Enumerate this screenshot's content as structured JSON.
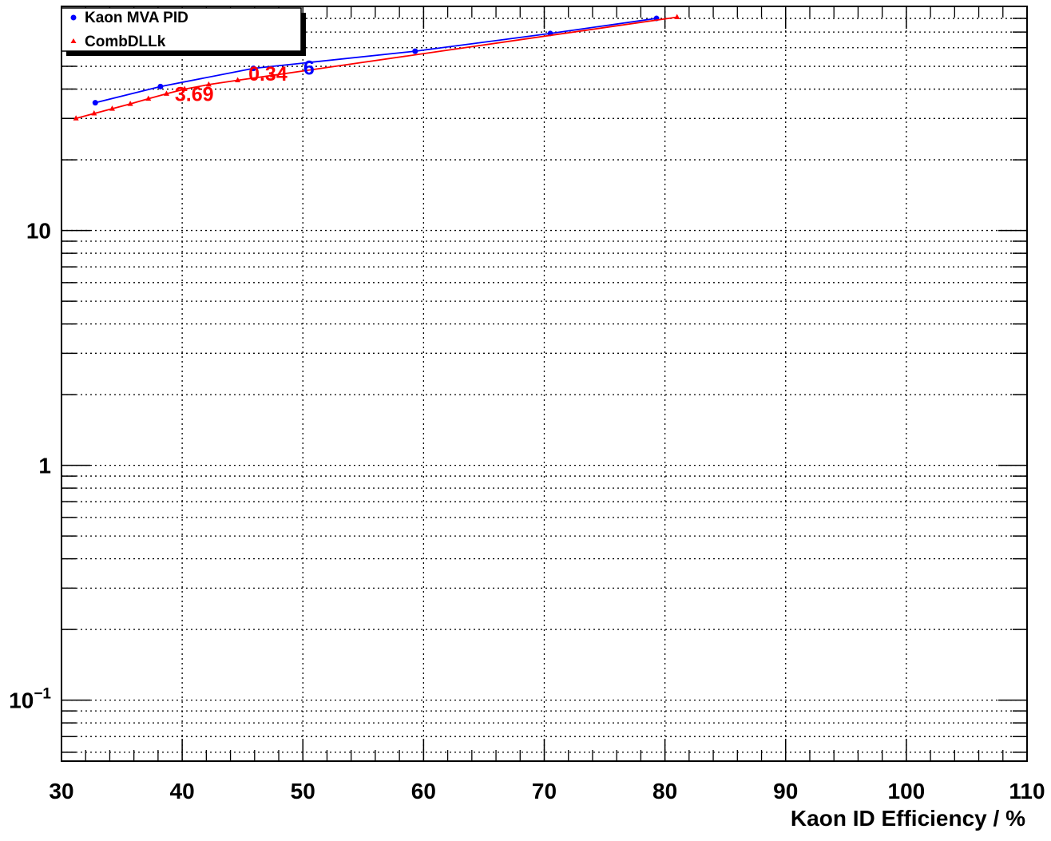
{
  "chart_data": {
    "type": "line",
    "title": "",
    "xlabel": "Kaon ID Efficiency / %",
    "ylabel": "",
    "xlim": [
      30,
      110
    ],
    "ylim": [
      0.055,
      90
    ],
    "ylog": true,
    "grid": true,
    "legend_position": "top-left",
    "x_ticks": [
      {
        "value": 30,
        "label": "30"
      },
      {
        "value": 40,
        "label": "40"
      },
      {
        "value": 50,
        "label": "50"
      },
      {
        "value": 60,
        "label": "60"
      },
      {
        "value": 70,
        "label": "70"
      },
      {
        "value": 80,
        "label": "80"
      },
      {
        "value": 90,
        "label": "90"
      },
      {
        "value": 100,
        "label": "100"
      },
      {
        "value": 110,
        "label": "110"
      }
    ],
    "y_ticks": [
      {
        "value": 10,
        "base": "10",
        "exp": ""
      },
      {
        "value": 1,
        "base": "1",
        "exp": ""
      },
      {
        "value": 0.1,
        "base": "10",
        "exp": "−1"
      }
    ],
    "series": [
      {
        "name": "Kaon MVA PID",
        "color": "#0000ff",
        "marker": "circle",
        "x": [
          32.8,
          38.2,
          45.9,
          59.3,
          70.5,
          79.3
        ],
        "y": [
          35.0,
          41.0,
          49.0,
          58.0,
          69.0,
          80.0
        ]
      },
      {
        "name": "CombDLLk",
        "color": "#ff0000",
        "marker": "triangle",
        "x": [
          31.2,
          32.7,
          34.2,
          35.7,
          37.2,
          38.7,
          40.2,
          42.2,
          44.6,
          47.5,
          81.0
        ],
        "y": [
          30.0,
          31.5,
          33.0,
          34.6,
          36.4,
          38.2,
          40.0,
          41.8,
          43.6,
          45.8,
          81.0
        ]
      }
    ],
    "annotations": [
      {
        "text": "3.69",
        "x": 41.0,
        "y": 38.2,
        "color": "#ff0000"
      },
      {
        "text": "0.34",
        "x": 47.1,
        "y": 46.6,
        "color": "#ff0000"
      },
      {
        "text": "6",
        "x": 50.5,
        "y": 49.5,
        "color": "#0000ff"
      }
    ]
  }
}
